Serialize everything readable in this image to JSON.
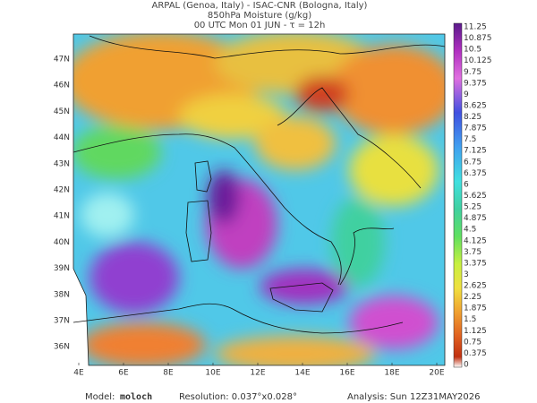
{
  "header": {
    "line1": "ARPAL (Genoa, Italy)  -  ISAC-CNR (Bologna, Italy)",
    "line2": "850hPa Moisture (g/kg)",
    "line3": "00 UTC Mon 01 JUN  -  τ = 12h"
  },
  "map": {
    "lon_labels": [
      "4E",
      "6E",
      "8E",
      "10E",
      "12E",
      "14E",
      "16E",
      "18E",
      "20E"
    ],
    "lat_labels": [
      "47N",
      "46N",
      "45N",
      "44N",
      "43N",
      "42N",
      "41N",
      "40N",
      "39N",
      "38N",
      "37N",
      "36N"
    ]
  },
  "colorbar": {
    "labels": [
      "11.25",
      "10.875",
      "10.5",
      "10.125",
      "9.75",
      "9.375",
      "9",
      "8.625",
      "8.25",
      "7.875",
      "7.5",
      "7.125",
      "6.75",
      "6.375",
      "6",
      "5.625",
      "5.25",
      "4.875",
      "4.5",
      "4.125",
      "3.75",
      "3.375",
      "3",
      "2.625",
      "2.25",
      "1.875",
      "1.5",
      "1.125",
      "0.75",
      "0.375",
      "0"
    ]
  },
  "footer": {
    "model_label": "Model:",
    "model": "moloch",
    "resolution": "Resolution: 0.037°x0.028°",
    "analysis": "Analysis: Sun 12Z31MAY2026"
  }
}
